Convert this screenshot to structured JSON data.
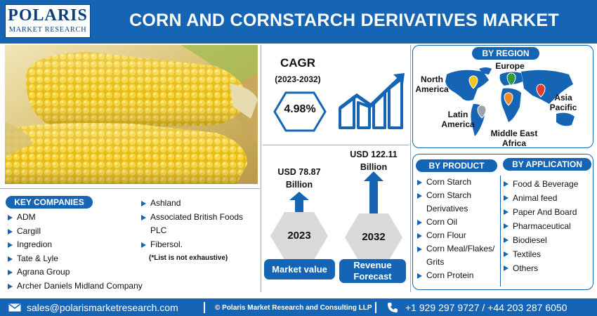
{
  "brand": {
    "name": "POLARIS",
    "tagline": "MARKET RESEARCH"
  },
  "title": "CORN AND CORNSTARCH DERIVATIVES MARKET",
  "key_companies": {
    "heading": "KEY COMPANIES",
    "col1": [
      "ADM",
      "Cargill",
      "Ingredion",
      "Tate & Lyle",
      "Agrana Group",
      "Archer Daniels Midland Company"
    ],
    "col2": [
      "Ashland",
      "Associated British Foods PLC",
      "Fibersol."
    ],
    "note": "(*List is not exhaustive)"
  },
  "cagr": {
    "label": "CAGR",
    "period": "(2023-2032)",
    "value": "4.98%"
  },
  "market_value": {
    "amount_line1": "USD 78.87",
    "amount_line2": "Billion",
    "year": "2023",
    "label": "Market value"
  },
  "revenue": {
    "amount_line1": "USD 122.11",
    "amount_line2": "Billion",
    "year": "2032",
    "label_line1": "Revenue",
    "label_line2": "Forecast"
  },
  "region": {
    "heading": "BY REGION",
    "north_america": [
      "North",
      "America"
    ],
    "europe": "Europe",
    "asia_pacific": [
      "Asia",
      "Pacific"
    ],
    "latin_america": [
      "Latin",
      "America"
    ],
    "mea": [
      "Middle East",
      "Africa"
    ]
  },
  "product": {
    "heading": "BY PRODUCT",
    "items": [
      "Corn Starch",
      "Corn Starch Derivatives",
      "Corn Oil",
      "Corn Flour",
      "Corn Meal/Flakes/ Grits",
      "Corn Protein"
    ]
  },
  "application": {
    "heading": "BY  APPLICATION",
    "items": [
      "Food & Beverage",
      "Animal feed",
      "Paper And Board",
      "Pharmaceutical",
      "Biodiesel",
      "Textiles",
      "Others"
    ]
  },
  "footer": {
    "email": "sales@polarismarketresearch.com",
    "copyright": "© Polaris Market Research and Consulting LLP",
    "phone": "+1 929 297 9727 / +44 203 287 6050"
  },
  "colors": {
    "brand_blue": "#1565b4",
    "dark_blue": "#0d3f7a",
    "hex_gray": "#d9d9d9",
    "corn_yellow": "#f2cf2c"
  },
  "icons": [
    "email-icon",
    "phone-icon",
    "up-arrow-icon",
    "rising-bars-icon",
    "map-pin-icon"
  ]
}
